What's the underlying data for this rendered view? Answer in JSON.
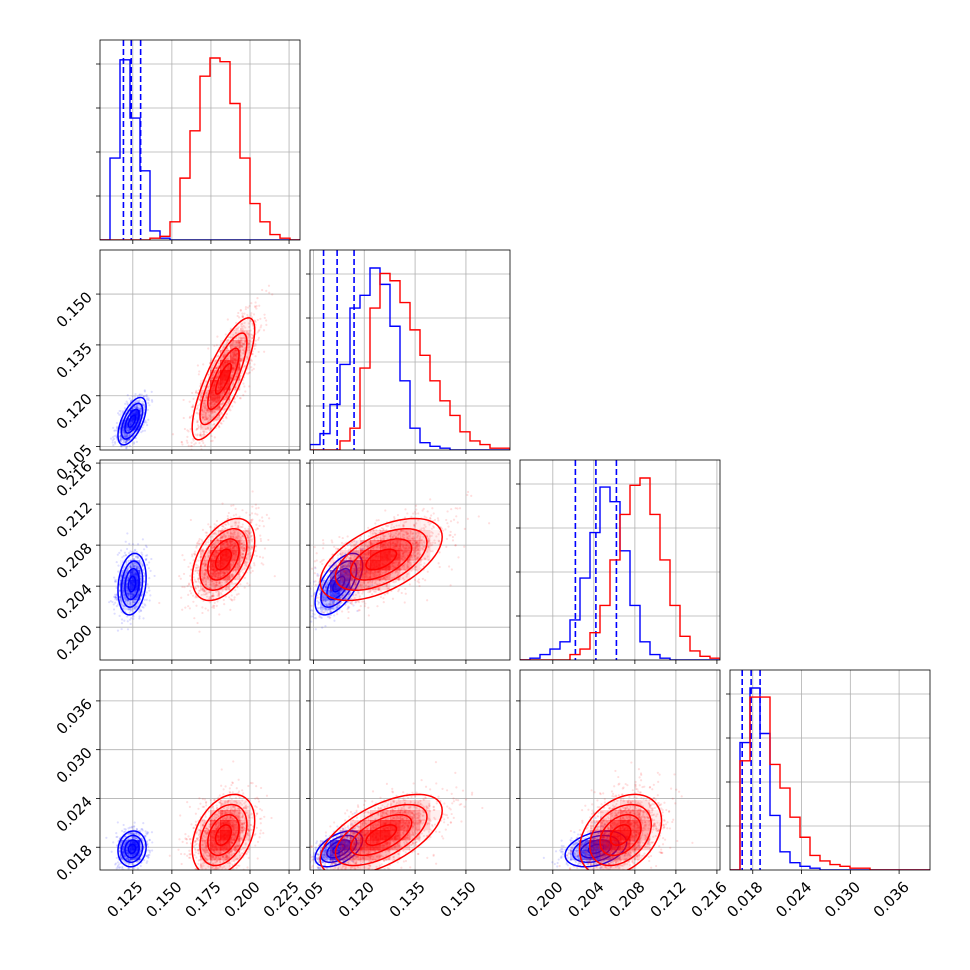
{
  "colors": {
    "series_a": "#0000ff",
    "series_b": "#ff0000",
    "grid": "#b0b0b0"
  },
  "chart_data": {
    "type": "corner",
    "grid": true,
    "parameters": [
      {
        "ticks": [
          0.125,
          0.15,
          0.175,
          0.2,
          0.225
        ],
        "tick_labels": [
          "0.125",
          "0.150",
          "0.175",
          "0.200",
          "0.225"
        ],
        "range": [
          0.104,
          0.232
        ]
      },
      {
        "ticks": [
          0.105,
          0.12,
          0.135,
          0.15
        ],
        "tick_labels": [
          "0.105",
          "0.120",
          "0.135",
          "0.150"
        ],
        "range": [
          0.104,
          0.163
        ]
      },
      {
        "ticks": [
          0.2,
          0.204,
          0.208,
          0.212,
          0.216
        ],
        "tick_labels": [
          "0.200",
          "0.204",
          "0.208",
          "0.212",
          "0.216"
        ],
        "range": [
          0.1968,
          0.2163
        ]
      },
      {
        "ticks": [
          0.018,
          0.024,
          0.03,
          0.036
        ],
        "tick_labels": [
          "0.018",
          "0.024",
          "0.030",
          "0.036"
        ],
        "range": [
          0.0152,
          0.0398
        ]
      }
    ],
    "series": [
      {
        "color": "#0000ff",
        "quantiles": [
          [
            0.119,
            0.124,
            0.13
          ],
          [
            0.108,
            0.112,
            0.117
          ],
          [
            0.2022,
            0.2042,
            0.2062
          ],
          [
            0.0167,
            0.0178,
            0.0189
          ]
        ],
        "histograms": [
          [
            0,
            0.45,
            0.99,
            0.67,
            0.38,
            0.05,
            0.01,
            0,
            0,
            0,
            0,
            0,
            0,
            0,
            0,
            0,
            0,
            0,
            0,
            0
          ],
          [
            0.03,
            0.09,
            0.25,
            0.47,
            0.78,
            0.85,
            1.0,
            0.91,
            0.68,
            0.38,
            0.12,
            0.04,
            0.02,
            0.01,
            0,
            0,
            0,
            0,
            0,
            0
          ],
          [
            0,
            0.01,
            0.03,
            0.06,
            0.1,
            0.22,
            0.45,
            0.7,
            0.95,
            0.87,
            0.6,
            0.3,
            0.1,
            0.03,
            0.01,
            0,
            0,
            0,
            0,
            0
          ],
          [
            0,
            0.7,
            1.0,
            0.75,
            0.3,
            0.1,
            0.04,
            0.02,
            0.01,
            0,
            0,
            0,
            0,
            0,
            0,
            0,
            0,
            0,
            0,
            0
          ]
        ],
        "params": {
          "mean": [
            0.1245,
            0.1125,
            0.2042,
            0.0178
          ],
          "sd": [
            0.0045,
            0.0035,
            0.0015,
            0.0011
          ],
          "corr": [
            [
              1,
              0.6,
              0.2,
              0.1
            ],
            [
              0.6,
              1,
              0.6,
              0.5
            ],
            [
              0.2,
              0.6,
              1,
              0.35
            ],
            [
              0.1,
              0.5,
              0.35,
              1
            ]
          ]
        }
      },
      {
        "color": "#ff0000",
        "quantiles": null,
        "histograms": [
          [
            0,
            0,
            0,
            0,
            0,
            0.01,
            0.02,
            0.1,
            0.34,
            0.6,
            0.9,
            1.0,
            0.98,
            0.75,
            0.45,
            0.2,
            0.1,
            0.03,
            0.01,
            0
          ],
          [
            0,
            0,
            0,
            0.05,
            0.12,
            0.45,
            0.78,
            0.97,
            0.93,
            0.81,
            0.66,
            0.52,
            0.38,
            0.27,
            0.19,
            0.1,
            0.05,
            0.03,
            0.01,
            0.01
          ],
          [
            0,
            0,
            0,
            0,
            0,
            0.03,
            0.06,
            0.15,
            0.3,
            0.55,
            0.8,
            0.96,
            1.0,
            0.8,
            0.55,
            0.3,
            0.13,
            0.05,
            0.02,
            0.01
          ],
          [
            0,
            0.6,
            0.95,
            0.95,
            0.58,
            0.45,
            0.29,
            0.18,
            0.08,
            0.05,
            0.03,
            0.02,
            0.01,
            0.01,
            0,
            0,
            0,
            0,
            0,
            0
          ]
        ],
        "params": {
          "mean": [
            0.183,
            0.125,
            0.2066,
            0.0195
          ],
          "sd": [
            0.01,
            0.009,
            0.002,
            0.0025
          ],
          "corr": [
            [
              1,
              0.8,
              0.45,
              0.35
            ],
            [
              0.8,
              1,
              0.55,
              0.6
            ],
            [
              0.45,
              0.55,
              1,
              0.35
            ],
            [
              0.35,
              0.6,
              0.35,
              1
            ]
          ]
        }
      }
    ]
  }
}
